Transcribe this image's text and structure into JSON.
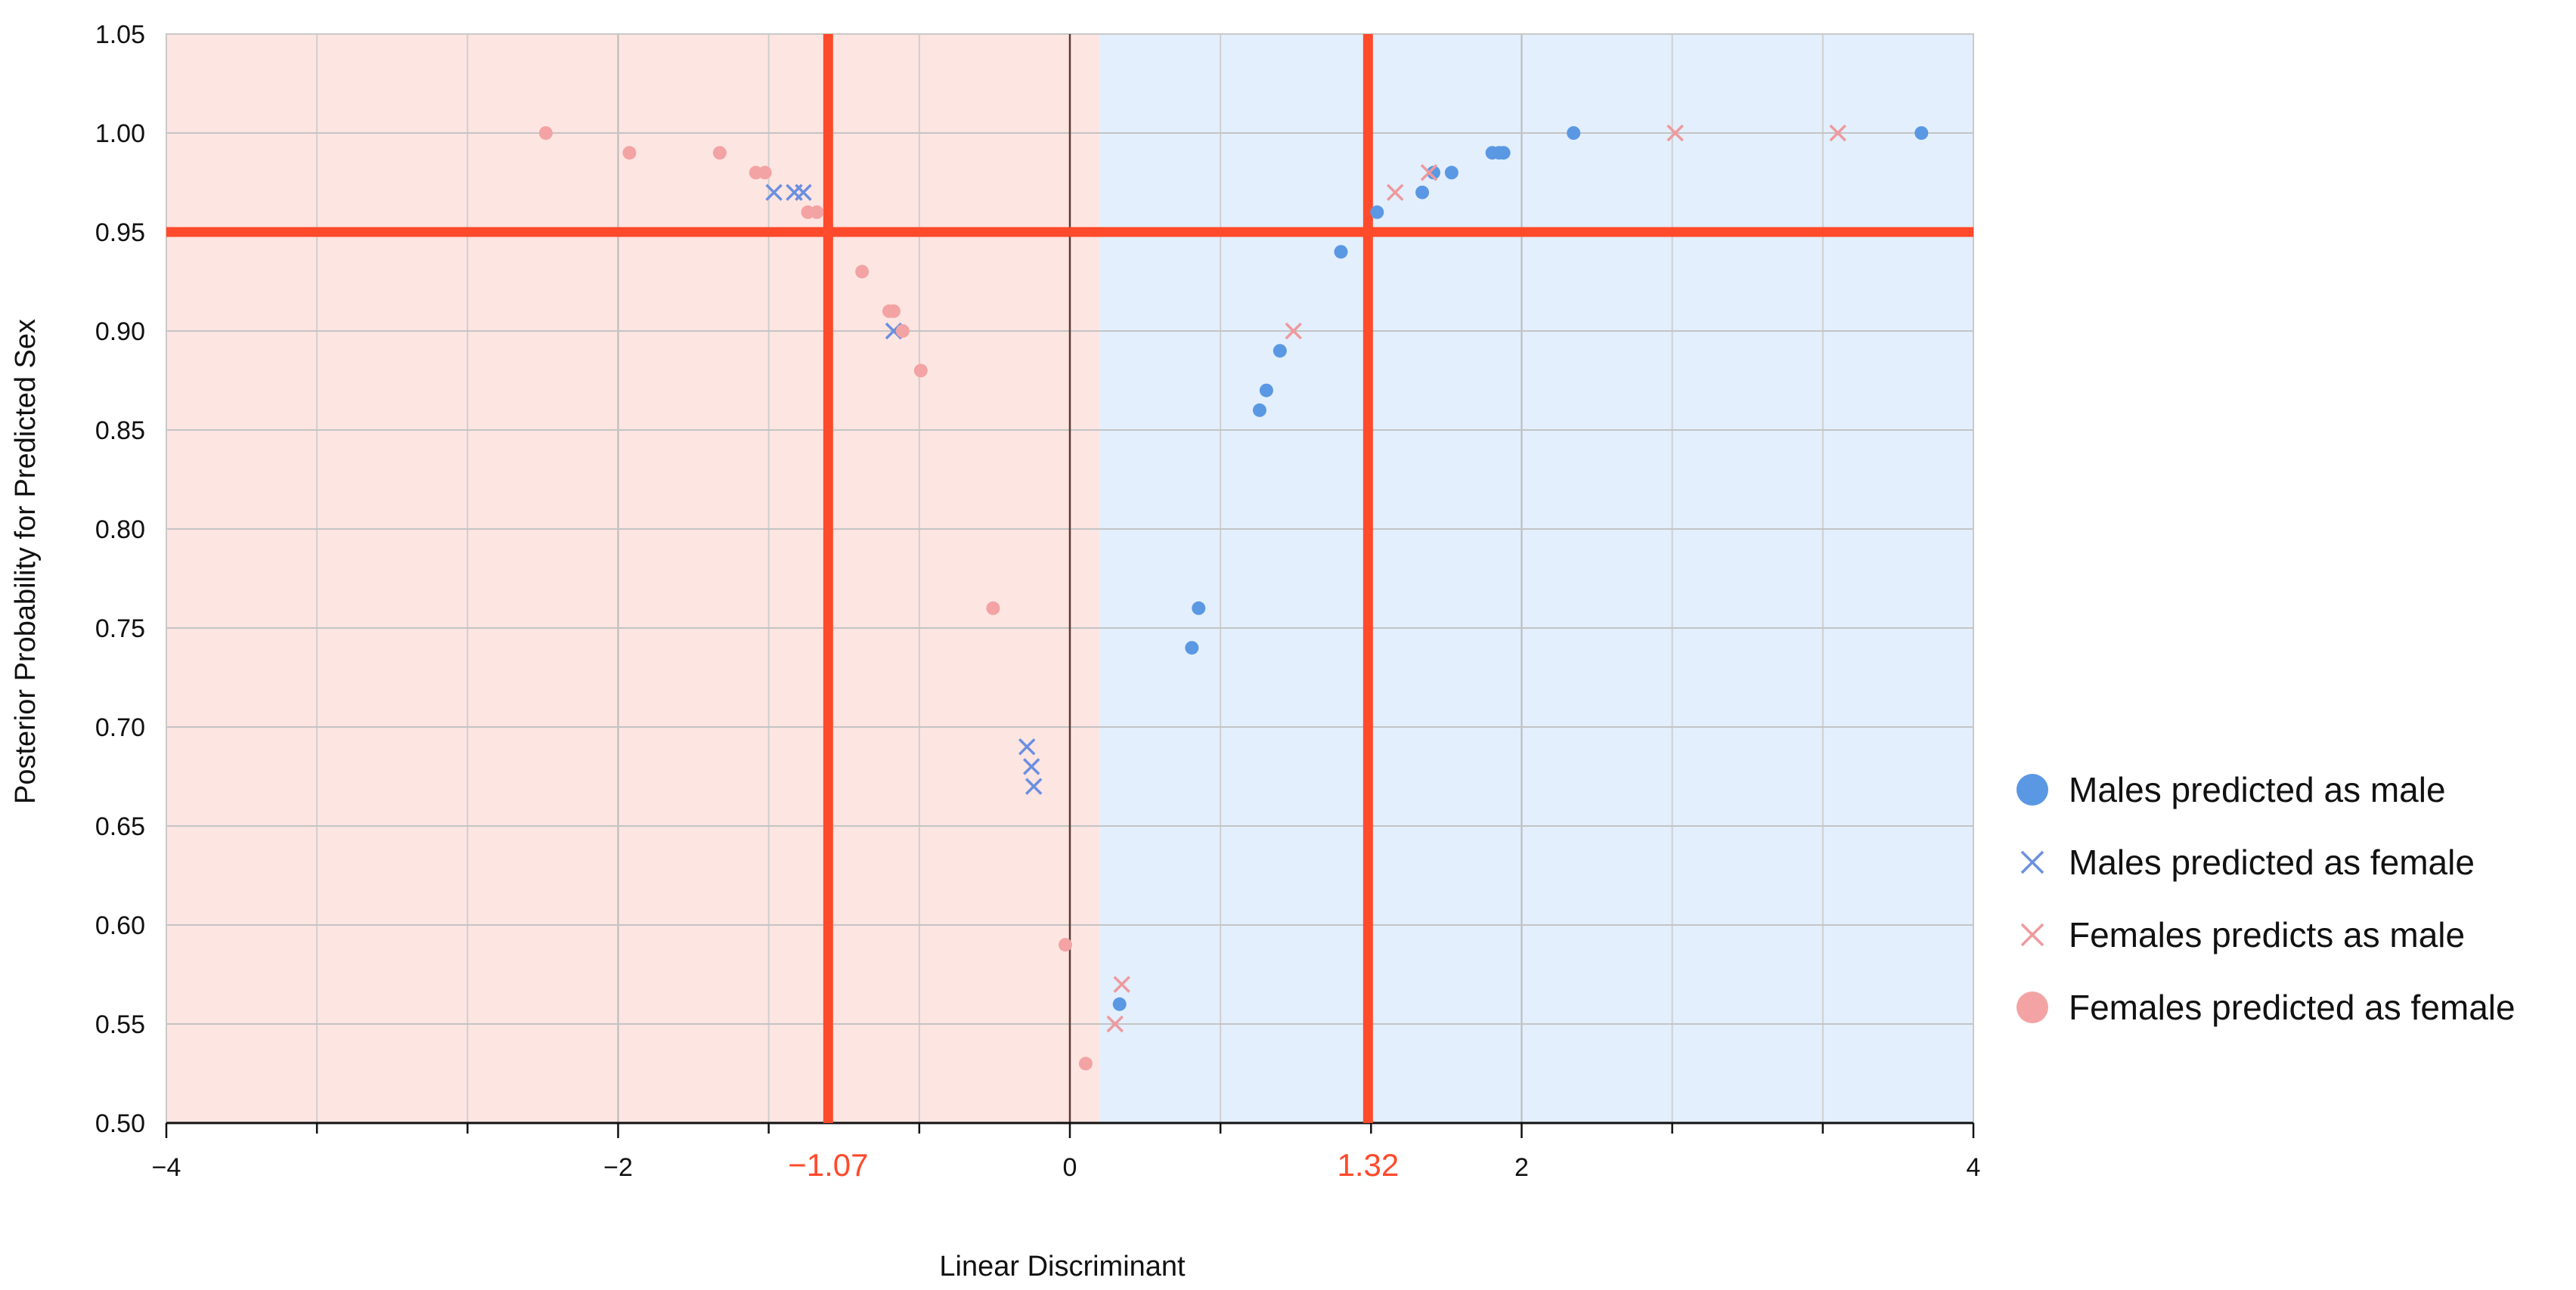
{
  "chart_data": {
    "type": "scatter",
    "xlabel": "Linear Discriminant",
    "ylabel": "Posterior Probability for Predicted Sex",
    "xlim": [
      -4,
      4
    ],
    "ylim": [
      0.5,
      1.05
    ],
    "x_ticks": [
      -4,
      -2,
      0,
      2,
      4
    ],
    "x_tick_labels": [
      "−4",
      "−2",
      "0",
      "2",
      "4"
    ],
    "y_ticks": [
      0.5,
      0.55,
      0.6,
      0.65,
      0.7,
      0.75,
      0.8,
      0.85,
      0.9,
      0.95,
      1.0,
      1.05
    ],
    "y_tick_labels": [
      "0.50",
      "0.55",
      "0.60",
      "0.65",
      "0.70",
      "0.75",
      "0.80",
      "0.85",
      "0.90",
      "0.95",
      "1.00",
      "1.05"
    ],
    "grid": true,
    "legend_position": "right",
    "region_split_x": 0.13,
    "regions": [
      {
        "from": -4,
        "to": 0.13,
        "color": "#fde5e2"
      },
      {
        "from": 0.13,
        "to": 4,
        "color": "#e3effc"
      }
    ],
    "thresholds": {
      "vertical": [
        {
          "x": -1.07,
          "label": "−1.07"
        },
        {
          "x": 1.32,
          "label": "1.32"
        }
      ],
      "horizontal": [
        {
          "y": 0.95
        }
      ],
      "color": "#ff4a2b"
    },
    "series": [
      {
        "name": "Males predicted as male",
        "marker": "circle",
        "color": "#5a98e4",
        "points": [
          [
            0.22,
            0.56
          ],
          [
            0.54,
            0.74
          ],
          [
            0.57,
            0.76
          ],
          [
            0.84,
            0.86
          ],
          [
            0.87,
            0.87
          ],
          [
            0.93,
            0.89
          ],
          [
            1.2,
            0.94
          ],
          [
            1.36,
            0.96
          ],
          [
            1.56,
            0.97
          ],
          [
            1.61,
            0.98
          ],
          [
            1.69,
            0.98
          ],
          [
            1.87,
            0.99
          ],
          [
            1.9,
            0.99
          ],
          [
            1.92,
            0.99
          ],
          [
            2.23,
            1.0
          ],
          [
            3.77,
            1.0
          ]
        ]
      },
      {
        "name": "Males predicted as female",
        "marker": "x",
        "color": "#6b8fe0",
        "points": [
          [
            -1.31,
            0.97
          ],
          [
            -1.22,
            0.97
          ],
          [
            -1.18,
            0.97
          ],
          [
            -0.78,
            0.9
          ],
          [
            -0.19,
            0.69
          ],
          [
            -0.17,
            0.68
          ],
          [
            -0.16,
            0.67
          ]
        ]
      },
      {
        "name": "Females predicts as male",
        "marker": "x",
        "color": "#ee9a9e",
        "points": [
          [
            0.2,
            0.55
          ],
          [
            0.23,
            0.57
          ],
          [
            0.99,
            0.9
          ],
          [
            1.44,
            0.97
          ],
          [
            1.59,
            0.98
          ],
          [
            2.68,
            1.0
          ],
          [
            3.4,
            1.0
          ]
        ]
      },
      {
        "name": "Females predicted as female",
        "marker": "circle",
        "color": "#f3a3a3",
        "points": [
          [
            -2.32,
            1.0
          ],
          [
            -1.95,
            0.99
          ],
          [
            -1.55,
            0.99
          ],
          [
            -1.39,
            0.98
          ],
          [
            -1.35,
            0.98
          ],
          [
            -1.16,
            0.96
          ],
          [
            -1.12,
            0.96
          ],
          [
            -0.92,
            0.93
          ],
          [
            -0.8,
            0.91
          ],
          [
            -0.78,
            0.91
          ],
          [
            -0.74,
            0.9
          ],
          [
            -0.66,
            0.88
          ],
          [
            -0.34,
            0.76
          ],
          [
            -0.02,
            0.59
          ],
          [
            0.07,
            0.53
          ]
        ]
      }
    ]
  }
}
